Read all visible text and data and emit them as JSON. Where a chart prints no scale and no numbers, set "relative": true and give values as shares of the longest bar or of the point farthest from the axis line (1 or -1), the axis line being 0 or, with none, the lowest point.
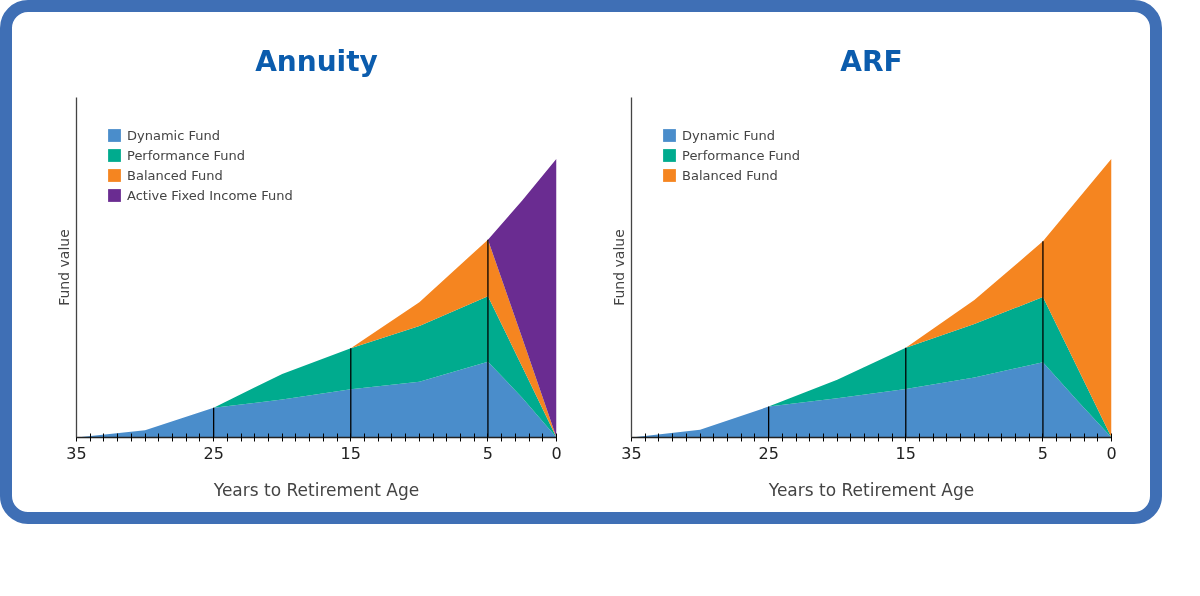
{
  "chart_data": [
    {
      "type": "area",
      "title": "Annuity",
      "xlabel": "Years to Retirement Age",
      "ylabel": "Fund value",
      "relative": true,
      "stacked": true,
      "grid": false,
      "legend": "top left",
      "x": [
        35,
        30,
        25,
        20,
        15,
        10,
        5,
        2.5,
        0
      ],
      "xlim": [
        35,
        0
      ],
      "xticks": [
        35,
        {
          "value": 34,
          "label": null
        },
        {
          "value": 33,
          "label": null
        },
        {
          "value": 32,
          "label": null
        },
        {
          "value": 31,
          "label": null
        },
        {
          "value": 30,
          "label": null
        },
        {
          "value": 29,
          "label": null
        },
        {
          "value": 28,
          "label": null
        },
        {
          "value": 27,
          "label": null
        },
        {
          "value": 26,
          "label": null
        },
        25,
        {
          "value": 24,
          "label": null
        },
        {
          "value": 23,
          "label": null
        },
        {
          "value": 22,
          "label": null
        },
        {
          "value": 21,
          "label": null
        },
        {
          "value": 20,
          "label": null
        },
        {
          "value": 19,
          "label": null
        },
        {
          "value": 18,
          "label": null
        },
        {
          "value": 17,
          "label": null
        },
        {
          "value": 16,
          "label": null
        },
        15,
        {
          "value": 14,
          "label": null
        },
        {
          "value": 13,
          "label": null
        },
        {
          "value": 12,
          "label": null
        },
        {
          "value": 11,
          "label": null
        },
        {
          "value": 10,
          "label": null
        },
        {
          "value": 9,
          "label": null
        },
        {
          "value": 8,
          "label": null
        },
        {
          "value": 7,
          "label": null
        },
        {
          "value": 6,
          "label": null
        },
        5,
        {
          "value": 4,
          "label": null
        },
        {
          "value": 3,
          "label": null
        },
        {
          "value": 2,
          "label": null
        },
        {
          "value": 1,
          "label": null
        },
        0
      ],
      "series": [
        {
          "name": "Dynamic Fund",
          "color": "#4a8dcb",
          "values": [
            0,
            0.026,
            0.107,
            0.136,
            0.173,
            0.2,
            0.272,
            0.143,
            0
          ]
        },
        {
          "name": "Performance Fund",
          "color": "#00ab8e",
          "values": [
            0,
            0,
            0,
            0.092,
            0.147,
            0.2,
            0.235,
            0.111,
            0
          ]
        },
        {
          "name": "Balanced Fund",
          "color": "#f58520",
          "values": [
            0,
            0,
            0,
            0,
            0,
            0.085,
            0.203,
            0.103,
            0
          ]
        },
        {
          "name": "Active Fixed Income Fund",
          "color": "#6a2c91",
          "values": [
            0,
            0,
            0,
            0,
            0,
            0,
            0,
            0.493,
            1.0
          ]
        }
      ],
      "ref_lines": [
        {
          "axis": "x",
          "value": 25,
          "color": "#000000"
        },
        {
          "axis": "x",
          "value": 15,
          "color": "#000000"
        },
        {
          "axis": "x",
          "value": 5,
          "color": "#000000"
        }
      ]
    },
    {
      "type": "area",
      "title": "ARF",
      "xlabel": "Years to Retirement Age",
      "ylabel": "Fund value",
      "relative": true,
      "stacked": true,
      "grid": false,
      "legend": "top left",
      "x": [
        35,
        30,
        25,
        20,
        15,
        10,
        5,
        2.5,
        0
      ],
      "xlim": [
        35,
        0
      ],
      "xticks": [
        35,
        {
          "value": 34,
          "label": null
        },
        {
          "value": 33,
          "label": null
        },
        {
          "value": 32,
          "label": null
        },
        {
          "value": 31,
          "label": null
        },
        {
          "value": 30,
          "label": null
        },
        {
          "value": 29,
          "label": null
        },
        {
          "value": 28,
          "label": null
        },
        {
          "value": 27,
          "label": null
        },
        {
          "value": 26,
          "label": null
        },
        25,
        {
          "value": 24,
          "label": null
        },
        {
          "value": 23,
          "label": null
        },
        {
          "value": 22,
          "label": null
        },
        {
          "value": 21,
          "label": null
        },
        {
          "value": 20,
          "label": null
        },
        {
          "value": 19,
          "label": null
        },
        {
          "value": 18,
          "label": null
        },
        {
          "value": 17,
          "label": null
        },
        {
          "value": 16,
          "label": null
        },
        15,
        {
          "value": 14,
          "label": null
        },
        {
          "value": 13,
          "label": null
        },
        {
          "value": 12,
          "label": null
        },
        {
          "value": 11,
          "label": null
        },
        {
          "value": 10,
          "label": null
        },
        {
          "value": 9,
          "label": null
        },
        {
          "value": 8,
          "label": null
        },
        {
          "value": 7,
          "label": null
        },
        {
          "value": 6,
          "label": null
        },
        5,
        {
          "value": 4,
          "label": null
        },
        {
          "value": 3,
          "label": null
        },
        {
          "value": 2,
          "label": null
        },
        {
          "value": 1,
          "label": null
        },
        0
      ],
      "series": [
        {
          "name": "Dynamic Fund",
          "color": "#4a8dcb",
          "values": [
            0,
            0.028,
            0.111,
            0.141,
            0.174,
            0.215,
            0.27,
            0.133,
            0
          ]
        },
        {
          "name": "Performance Fund",
          "color": "#00ab8e",
          "values": [
            0,
            0,
            0,
            0.066,
            0.148,
            0.192,
            0.234,
            0.119,
            0
          ]
        },
        {
          "name": "Balanced Fund",
          "color": "#f58520",
          "values": [
            0,
            0,
            0,
            0,
            0,
            0.086,
            0.2,
            0.6,
            1.0
          ]
        }
      ],
      "ref_lines": [
        {
          "axis": "x",
          "value": 25,
          "color": "#000000"
        },
        {
          "axis": "x",
          "value": 15,
          "color": "#000000"
        },
        {
          "axis": "x",
          "value": 5,
          "color": "#000000"
        }
      ]
    }
  ]
}
